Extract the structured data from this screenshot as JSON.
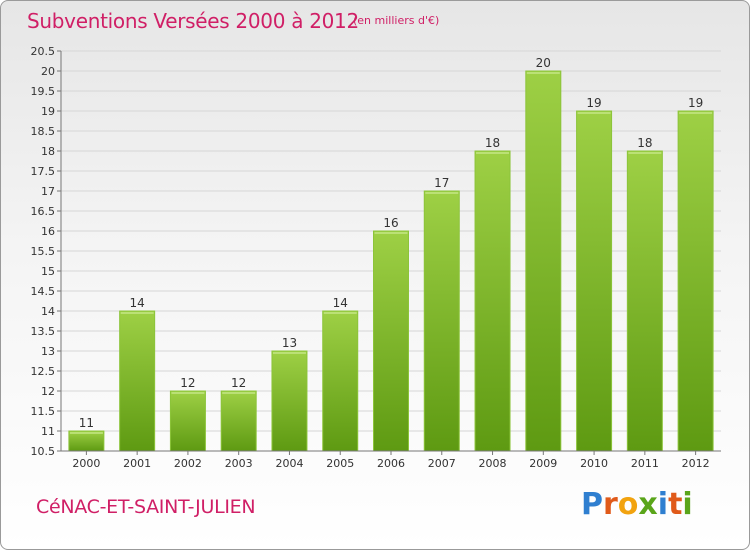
{
  "header": {
    "title": "Subventions Versées 2000 à 2012",
    "subtitle": "(en milliers d'€)"
  },
  "footer": {
    "commune": "CéNAC-ET-SAINT-JULIEN",
    "logo_text": "Proxiti"
  },
  "colors": {
    "title": "#d01f66",
    "bar_light": "#9ed045",
    "bar_dark": "#5e9a12",
    "logo": [
      "#2f7fd0",
      "#e05a1a",
      "#f2a30f",
      "#5aa51a",
      "#2f7fd0",
      "#e05a1a",
      "#5aa51a"
    ]
  },
  "chart_data": {
    "type": "bar",
    "title": "Subventions Versées 2000 à 2012",
    "subtitle": "(en milliers d'€)",
    "categories": [
      "2000",
      "2001",
      "2002",
      "2003",
      "2004",
      "2005",
      "2006",
      "2007",
      "2008",
      "2009",
      "2010",
      "2011",
      "2012"
    ],
    "values": [
      11,
      14,
      12,
      12,
      13,
      14,
      16,
      17,
      18,
      20,
      19,
      18,
      19
    ],
    "ylim": [
      10.5,
      20.5
    ],
    "yticks": [
      10.5,
      11,
      11.5,
      12,
      12.5,
      13,
      13.5,
      14,
      14.5,
      15,
      15.5,
      16,
      16.5,
      17,
      17.5,
      18,
      18.5,
      19,
      19.5,
      20,
      20.5
    ],
    "grid": true,
    "legend": "none"
  }
}
